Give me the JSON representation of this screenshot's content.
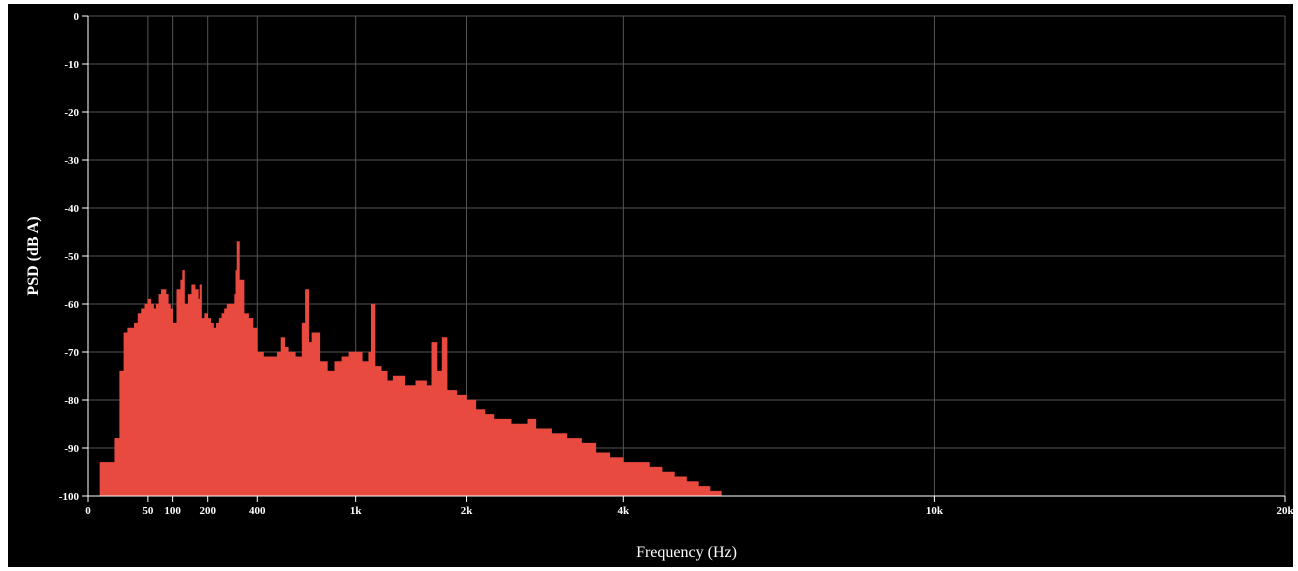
{
  "chart_data": {
    "type": "area",
    "xlabel": "Frequency (Hz)",
    "ylabel": "PSD (dB A)",
    "x_scale": "sqrt",
    "xlim": [
      0,
      20000
    ],
    "ylim": [
      -100,
      0
    ],
    "grid": true,
    "x_ticks": [
      {
        "value": 0,
        "label": "0"
      },
      {
        "value": 50,
        "label": "50"
      },
      {
        "value": 100,
        "label": "100"
      },
      {
        "value": 200,
        "label": "200"
      },
      {
        "value": 400,
        "label": "400"
      },
      {
        "value": 1000,
        "label": "1k"
      },
      {
        "value": 2000,
        "label": "2k"
      },
      {
        "value": 4000,
        "label": "4k"
      },
      {
        "value": 10000,
        "label": "10k"
      },
      {
        "value": 20000,
        "label": "20k"
      }
    ],
    "y_ticks": [
      {
        "value": 0,
        "label": "0"
      },
      {
        "value": -10,
        "label": "-10"
      },
      {
        "value": -20,
        "label": "-20"
      },
      {
        "value": -30,
        "label": "-30"
      },
      {
        "value": -40,
        "label": "-40"
      },
      {
        "value": -50,
        "label": "-50"
      },
      {
        "value": -60,
        "label": "-60"
      },
      {
        "value": -70,
        "label": "-70"
      },
      {
        "value": -80,
        "label": "-80"
      },
      {
        "value": -90,
        "label": "-90"
      },
      {
        "value": -100,
        "label": "-100"
      }
    ],
    "colors": {
      "background": "#000000",
      "fill": "#e84a3f",
      "grid": "#555555",
      "axis": "#ffffff",
      "text": "#ffffff"
    },
    "series": [
      {
        "x": [
          0,
          2,
          5,
          10,
          14,
          18,
          22,
          26,
          30,
          35,
          40,
          45,
          50,
          55,
          60,
          65,
          70,
          75,
          80,
          85,
          90,
          95,
          100,
          110,
          120,
          125,
          130,
          140,
          150,
          160,
          170,
          175,
          180,
          190,
          200,
          210,
          220,
          230,
          240,
          250,
          260,
          270,
          280,
          290,
          300,
          305,
          310,
          320,
          340,
          360,
          380,
          400,
          430,
          460,
          500,
          520,
          540,
          560,
          600,
          640,
          660,
          680,
          700,
          750,
          800,
          850,
          900,
          950,
          1000,
          1050,
          1100,
          1120,
          1150,
          1200,
          1250,
          1300,
          1400,
          1500,
          1600,
          1650,
          1700,
          1750,
          1800,
          1900,
          2000,
          2100,
          2200,
          2300,
          2400,
          2500,
          2600,
          2700,
          2800,
          2900,
          3000,
          3200,
          3400,
          3600,
          3800,
          4000,
          4200,
          4400,
          4600,
          4800,
          5000,
          5200,
          5400,
          5500,
          5600,
          6000,
          10000,
          20000
        ],
        "y": [
          -100,
          -93,
          -93,
          -88,
          -74,
          -66,
          -65,
          -65,
          -64,
          -62,
          -61,
          -60,
          -59,
          -60,
          -61,
          -60,
          -58,
          -57,
          -57,
          -58,
          -60,
          -61,
          -64,
          -57,
          -55,
          -53,
          -60,
          -58,
          -56,
          -57,
          -59,
          -56,
          -63,
          -62,
          -63,
          -64,
          -65,
          -64,
          -63,
          -62,
          -61,
          -60,
          -60,
          -60,
          -58,
          -53,
          -47,
          -55,
          -62,
          -63,
          -65,
          -70,
          -71,
          -71,
          -70,
          -67,
          -69,
          -70,
          -71,
          -64,
          -57,
          -68,
          -66,
          -72,
          -74,
          -72,
          -71,
          -70,
          -70,
          -72,
          -70,
          -60,
          -73,
          -74,
          -76,
          -75,
          -77,
          -76,
          -77,
          -68,
          -74,
          -67,
          -78,
          -79,
          -80,
          -82,
          -83,
          -84,
          -84,
          -85,
          -85,
          -84,
          -86,
          -86,
          -87,
          -88,
          -89,
          -91,
          -92,
          -93,
          -93,
          -94,
          -95,
          -96,
          -97,
          -98,
          -99,
          -99,
          -100,
          -100,
          -100,
          -100
        ]
      }
    ]
  }
}
